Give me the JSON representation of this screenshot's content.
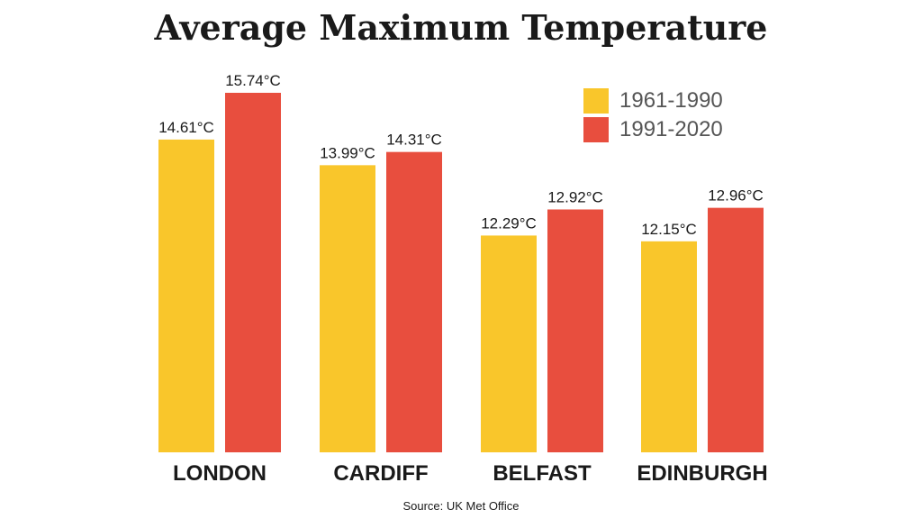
{
  "chart_data": {
    "type": "bar",
    "title": "Average Maximum Temperature",
    "categories": [
      "LONDON",
      "CARDIFF",
      "BELFAST",
      "EDINBURGH"
    ],
    "series": [
      {
        "name": "1961-1990",
        "color": "#F9C62B",
        "values": [
          14.61,
          13.99,
          12.29,
          12.15
        ],
        "labels": [
          "14.61°C",
          "13.99°C",
          "12.29°C",
          "12.15°C"
        ]
      },
      {
        "name": "1991-2020",
        "color": "#E84E3E",
        "values": [
          15.74,
          14.31,
          12.92,
          12.96
        ],
        "labels": [
          "15.74°C",
          "14.31°C",
          "12.92°C",
          "12.96°C"
        ]
      }
    ],
    "legend_position": "top-right",
    "grid": false,
    "source": "Source: UK Met Office"
  }
}
